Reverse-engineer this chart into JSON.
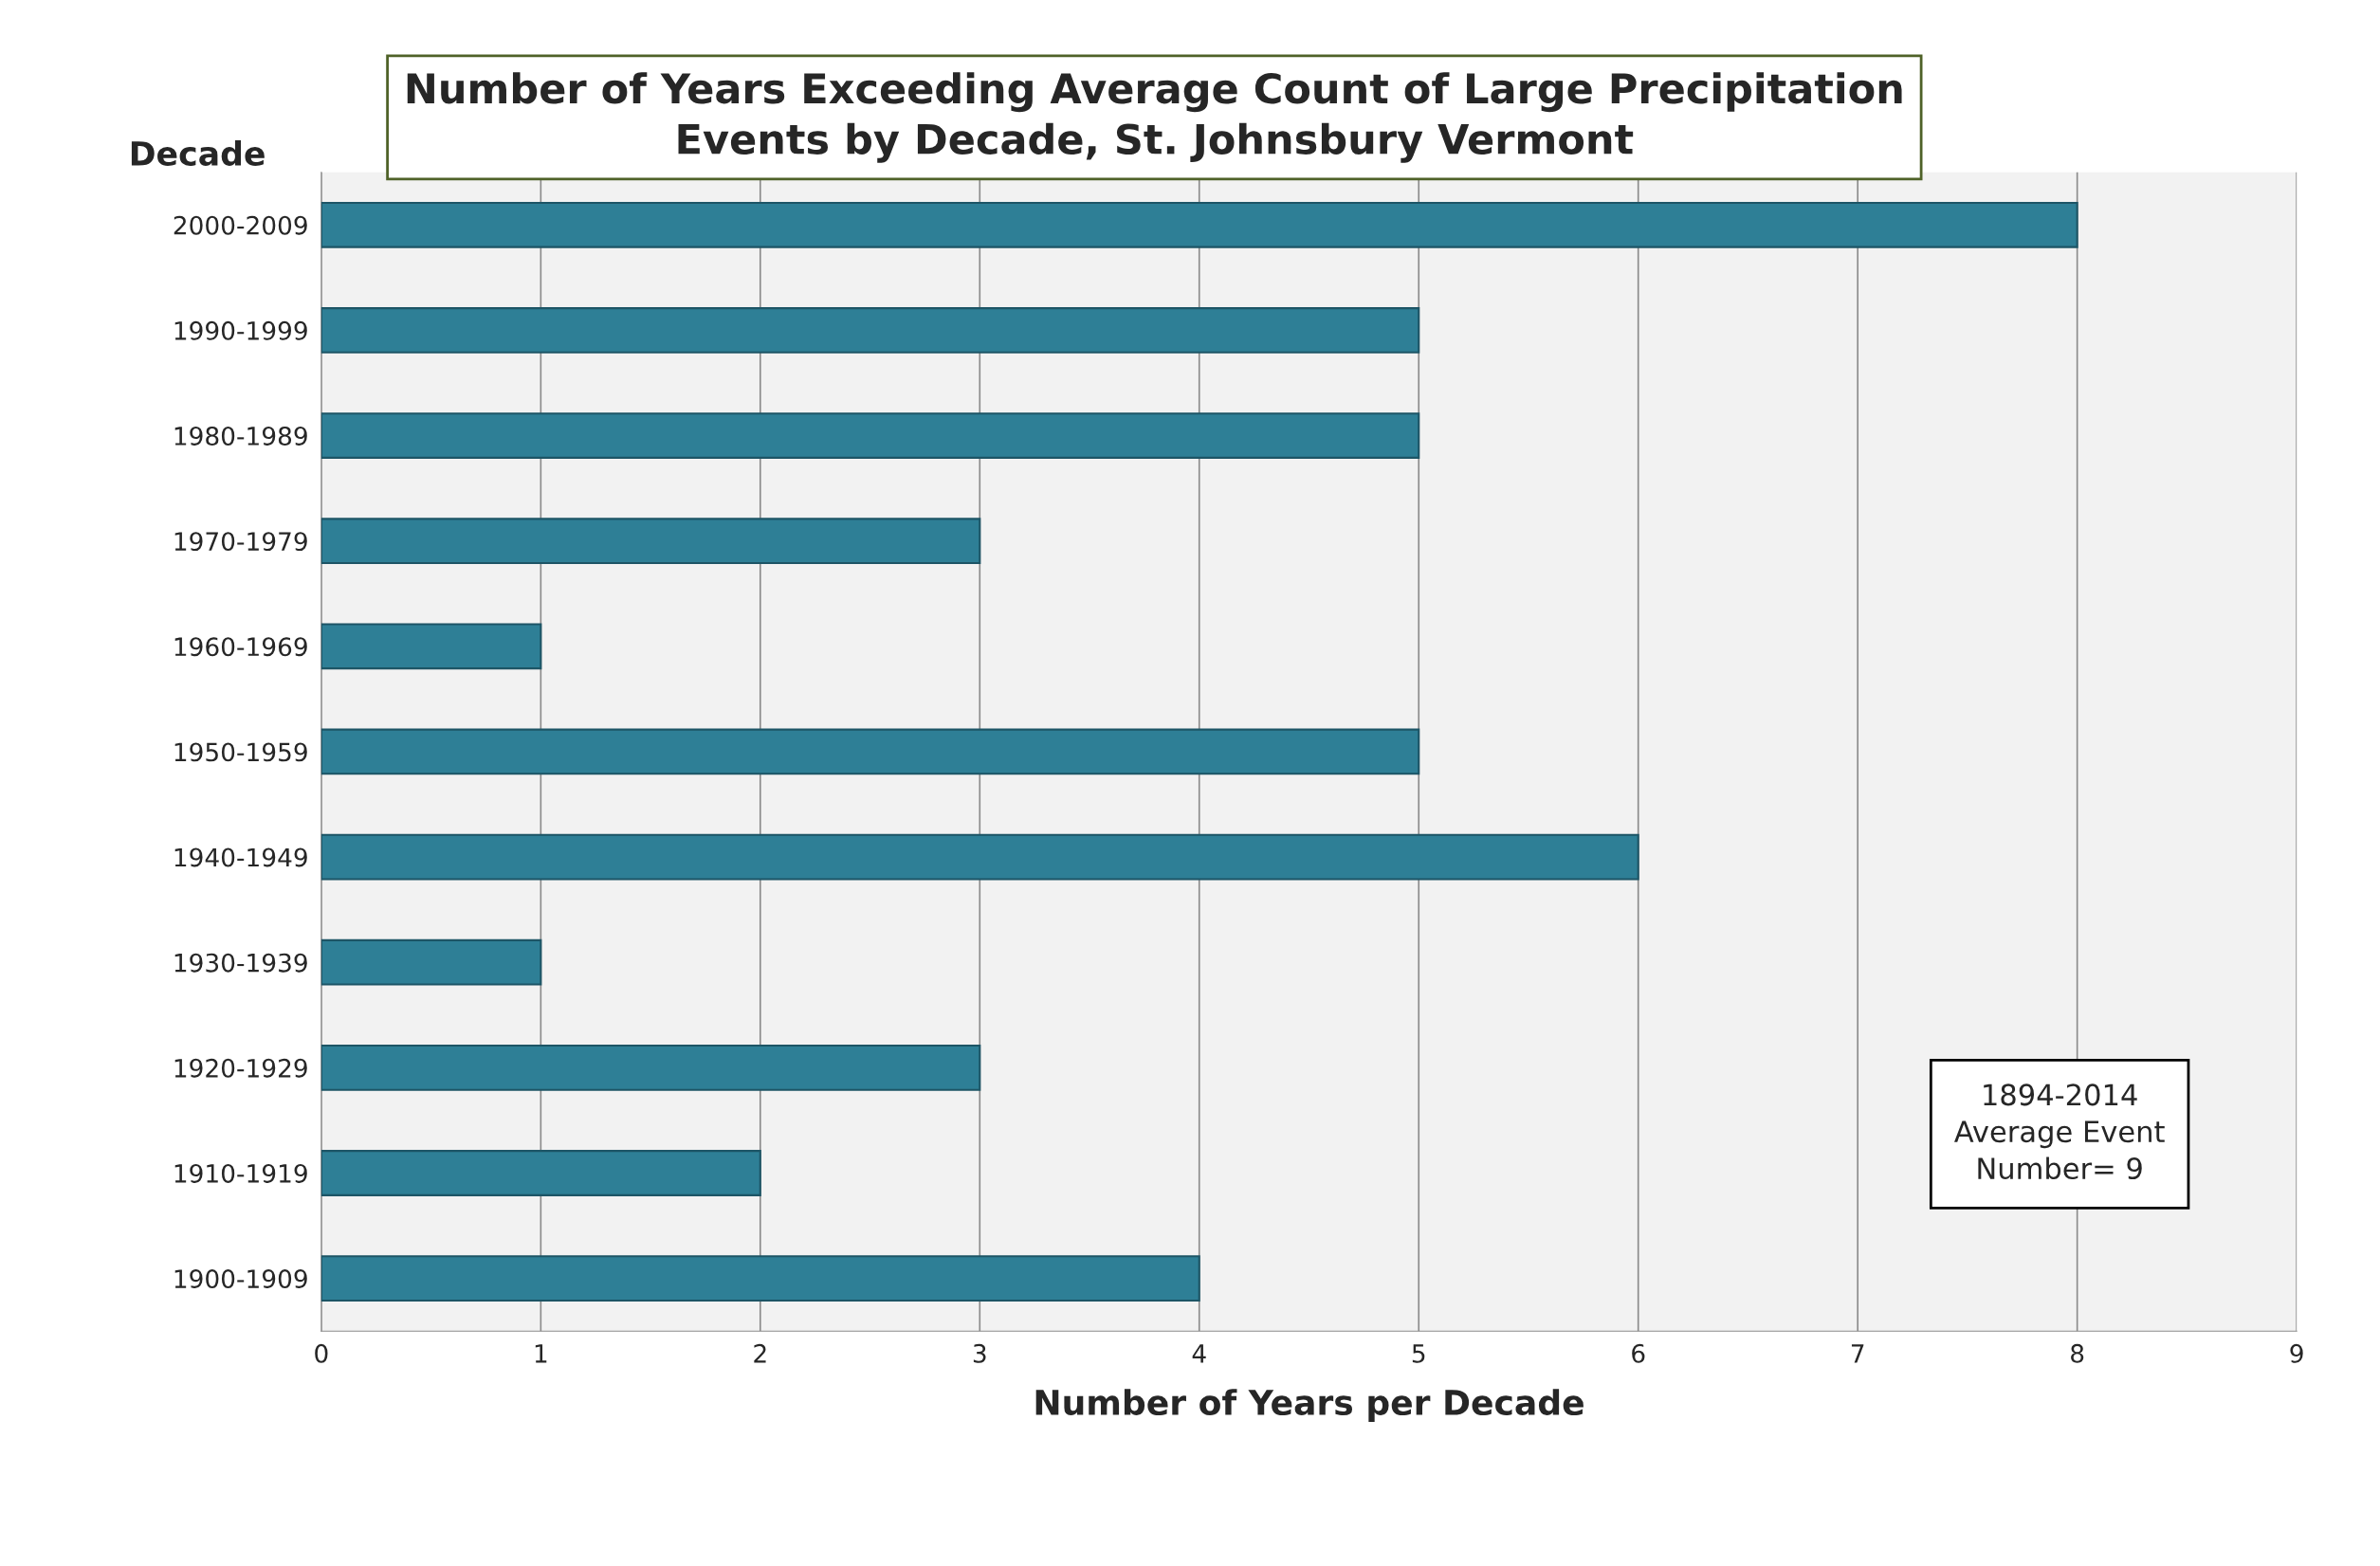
{
  "chart_data": {
    "type": "bar",
    "orientation": "horizontal",
    "title": "Number of Years Exceeding Average Count of Large Precipitation\nEvents by Decade, St. Johnsbury Vermont",
    "xlabel": "Number of Years per Decade",
    "ylabel": "Decade",
    "categories": [
      "2000-2009",
      "1990-1999",
      "1980-1989",
      "1970-1979",
      "1960-1969",
      "1950-1959",
      "1940-1949",
      "1930-1939",
      "1920-1929",
      "1910-1919",
      "1900-1909"
    ],
    "values": [
      8,
      5,
      5,
      3,
      1,
      5,
      6,
      1,
      3,
      2,
      4
    ],
    "color": "#2e7f96",
    "xlim": [
      0,
      9
    ],
    "xticks": [
      0,
      1,
      2,
      3,
      4,
      5,
      6,
      7,
      8,
      9
    ],
    "grid": "x",
    "legend": false,
    "annotations": [
      "1894-2014\nAverage Event\nNumber= 9"
    ]
  }
}
